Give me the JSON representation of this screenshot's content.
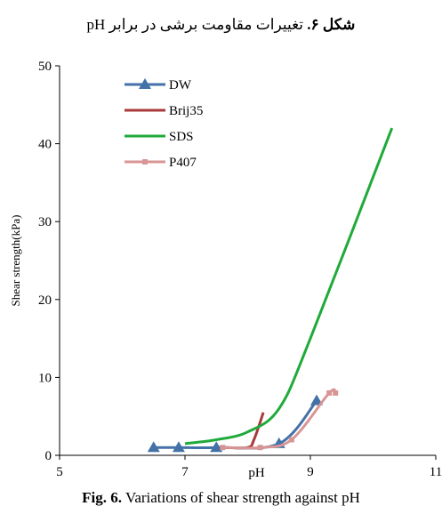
{
  "caption_fa": {
    "prefix": "شکل ۶.",
    "text": "تغییرات مقاومت برشی در برابر pH"
  },
  "caption_en": {
    "prefix": "Fig. 6.",
    "text": "Variations of shear strength against pH"
  },
  "chart_data": {
    "type": "line",
    "title": "",
    "xlabel": "pH",
    "ylabel": "Shear strength(kPa)",
    "xlim": [
      5,
      11
    ],
    "ylim": [
      0,
      50
    ],
    "xticks": [
      5,
      7,
      9,
      11
    ],
    "yticks": [
      0,
      10,
      20,
      30,
      40,
      50
    ],
    "grid": false,
    "legend_position": "top-left",
    "series": [
      {
        "name": "DW",
        "color": "#4472a8",
        "marker": "triangle",
        "x": [
          6.5,
          6.9,
          7.5,
          8.5,
          9.1
        ],
        "y": [
          1,
          1,
          1,
          1.5,
          7
        ]
      },
      {
        "name": "Brij35",
        "color": "#a83a3a",
        "marker": "none",
        "x": [
          7.6,
          8.0,
          8.1,
          8.25
        ],
        "y": [
          1,
          1,
          2,
          5.5
        ]
      },
      {
        "name": "SDS",
        "color": "#1faa3a",
        "marker": "none",
        "x": [
          7.0,
          7.5,
          8.0,
          8.5,
          9.0,
          10.3
        ],
        "y": [
          1.5,
          2,
          3,
          6,
          15,
          42
        ]
      },
      {
        "name": "P407",
        "color": "#d89595",
        "marker": "square",
        "x": [
          7.6,
          8.2,
          8.7,
          9.3,
          9.4
        ],
        "y": [
          1,
          1,
          2,
          8,
          8
        ]
      }
    ]
  }
}
